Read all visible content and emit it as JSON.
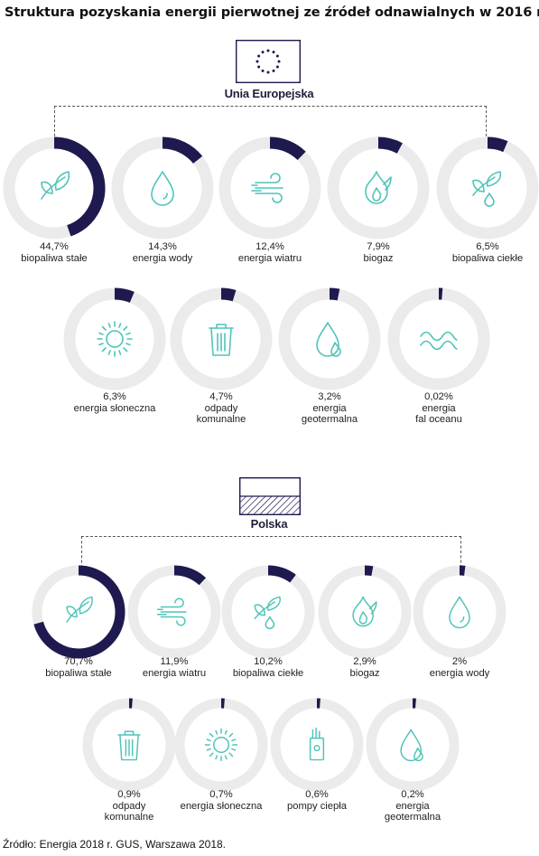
{
  "title": "Struktura pozyskania energii pierwotnej ze źródeł odnawialnych w 2016 r.",
  "source": "Źródło: Energia 2018 r. GUS, Warszawa 2018.",
  "colors": {
    "ring": "#ebebeb",
    "arc": "#1e1a4f",
    "icon": "#4fc4b8"
  },
  "chart_data": [
    {
      "type": "pie",
      "region": "Unia Europejska",
      "items": [
        {
          "label": "biopaliwa stałe",
          "value_text": "44,7%",
          "value": 44.7,
          "icon": "leaf-icon"
        },
        {
          "label": "energia wody",
          "value_text": "14,3%",
          "value": 14.3,
          "icon": "water-drop-icon"
        },
        {
          "label": "energia wiatru",
          "value_text": "12,4%",
          "value": 12.4,
          "icon": "wind-icon"
        },
        {
          "label": "biogaz",
          "value_text": "7,9%",
          "value": 7.9,
          "icon": "flame-icon"
        },
        {
          "label": "biopaliwa ciekłe",
          "value_text": "6,5%",
          "value": 6.5,
          "icon": "leaf-drop-icon"
        },
        {
          "label": "energia słoneczna",
          "value_text": "6,3%",
          "value": 6.3,
          "icon": "sun-icon"
        },
        {
          "label": "odpady komunalne",
          "label_lines": [
            "odpady",
            "komunalne"
          ],
          "value_text": "4,7%",
          "value": 4.7,
          "icon": "trash-bin-icon"
        },
        {
          "label": "energia geotermalna",
          "label_lines": [
            "energia",
            "geotermalna"
          ],
          "value_text": "3,2%",
          "value": 3.2,
          "icon": "geothermal-drop-icon"
        },
        {
          "label": "energia fal oceanu",
          "label_lines": [
            "energia",
            "fal oceanu"
          ],
          "value_text": "0,02%",
          "value": 0.02,
          "icon": "wave-icon"
        }
      ]
    },
    {
      "type": "pie",
      "region": "Polska",
      "items": [
        {
          "label": "biopaliwa stałe",
          "value_text": "70,7%",
          "value": 70.7,
          "icon": "leaf-icon"
        },
        {
          "label": "energia wiatru",
          "value_text": "11,9%",
          "value": 11.9,
          "icon": "wind-icon"
        },
        {
          "label": "biopaliwa ciekłe",
          "value_text": "10,2%",
          "value": 10.2,
          "icon": "leaf-drop-icon"
        },
        {
          "label": "biogaz",
          "value_text": "2,9%",
          "value": 2.9,
          "icon": "flame-icon"
        },
        {
          "label": "energia wody",
          "value_text": "2%",
          "value": 2,
          "icon": "water-drop-icon"
        },
        {
          "label": "odpady komunalne",
          "label_lines": [
            "odpady",
            "komunalne"
          ],
          "value_text": "0,9%",
          "value": 0.9,
          "icon": "trash-bin-icon"
        },
        {
          "label": "energia słoneczna",
          "value_text": "0,7%",
          "value": 0.7,
          "icon": "sun-icon"
        },
        {
          "label": "pompy ciepła",
          "value_text": "0,6%",
          "value": 0.6,
          "icon": "heat-pump-icon"
        },
        {
          "label": "energia geotermalna",
          "label_lines": [
            "energia",
            "geotermalna"
          ],
          "value_text": "0,2%",
          "value": 0.2,
          "icon": "geothermal-drop-icon"
        }
      ]
    }
  ]
}
